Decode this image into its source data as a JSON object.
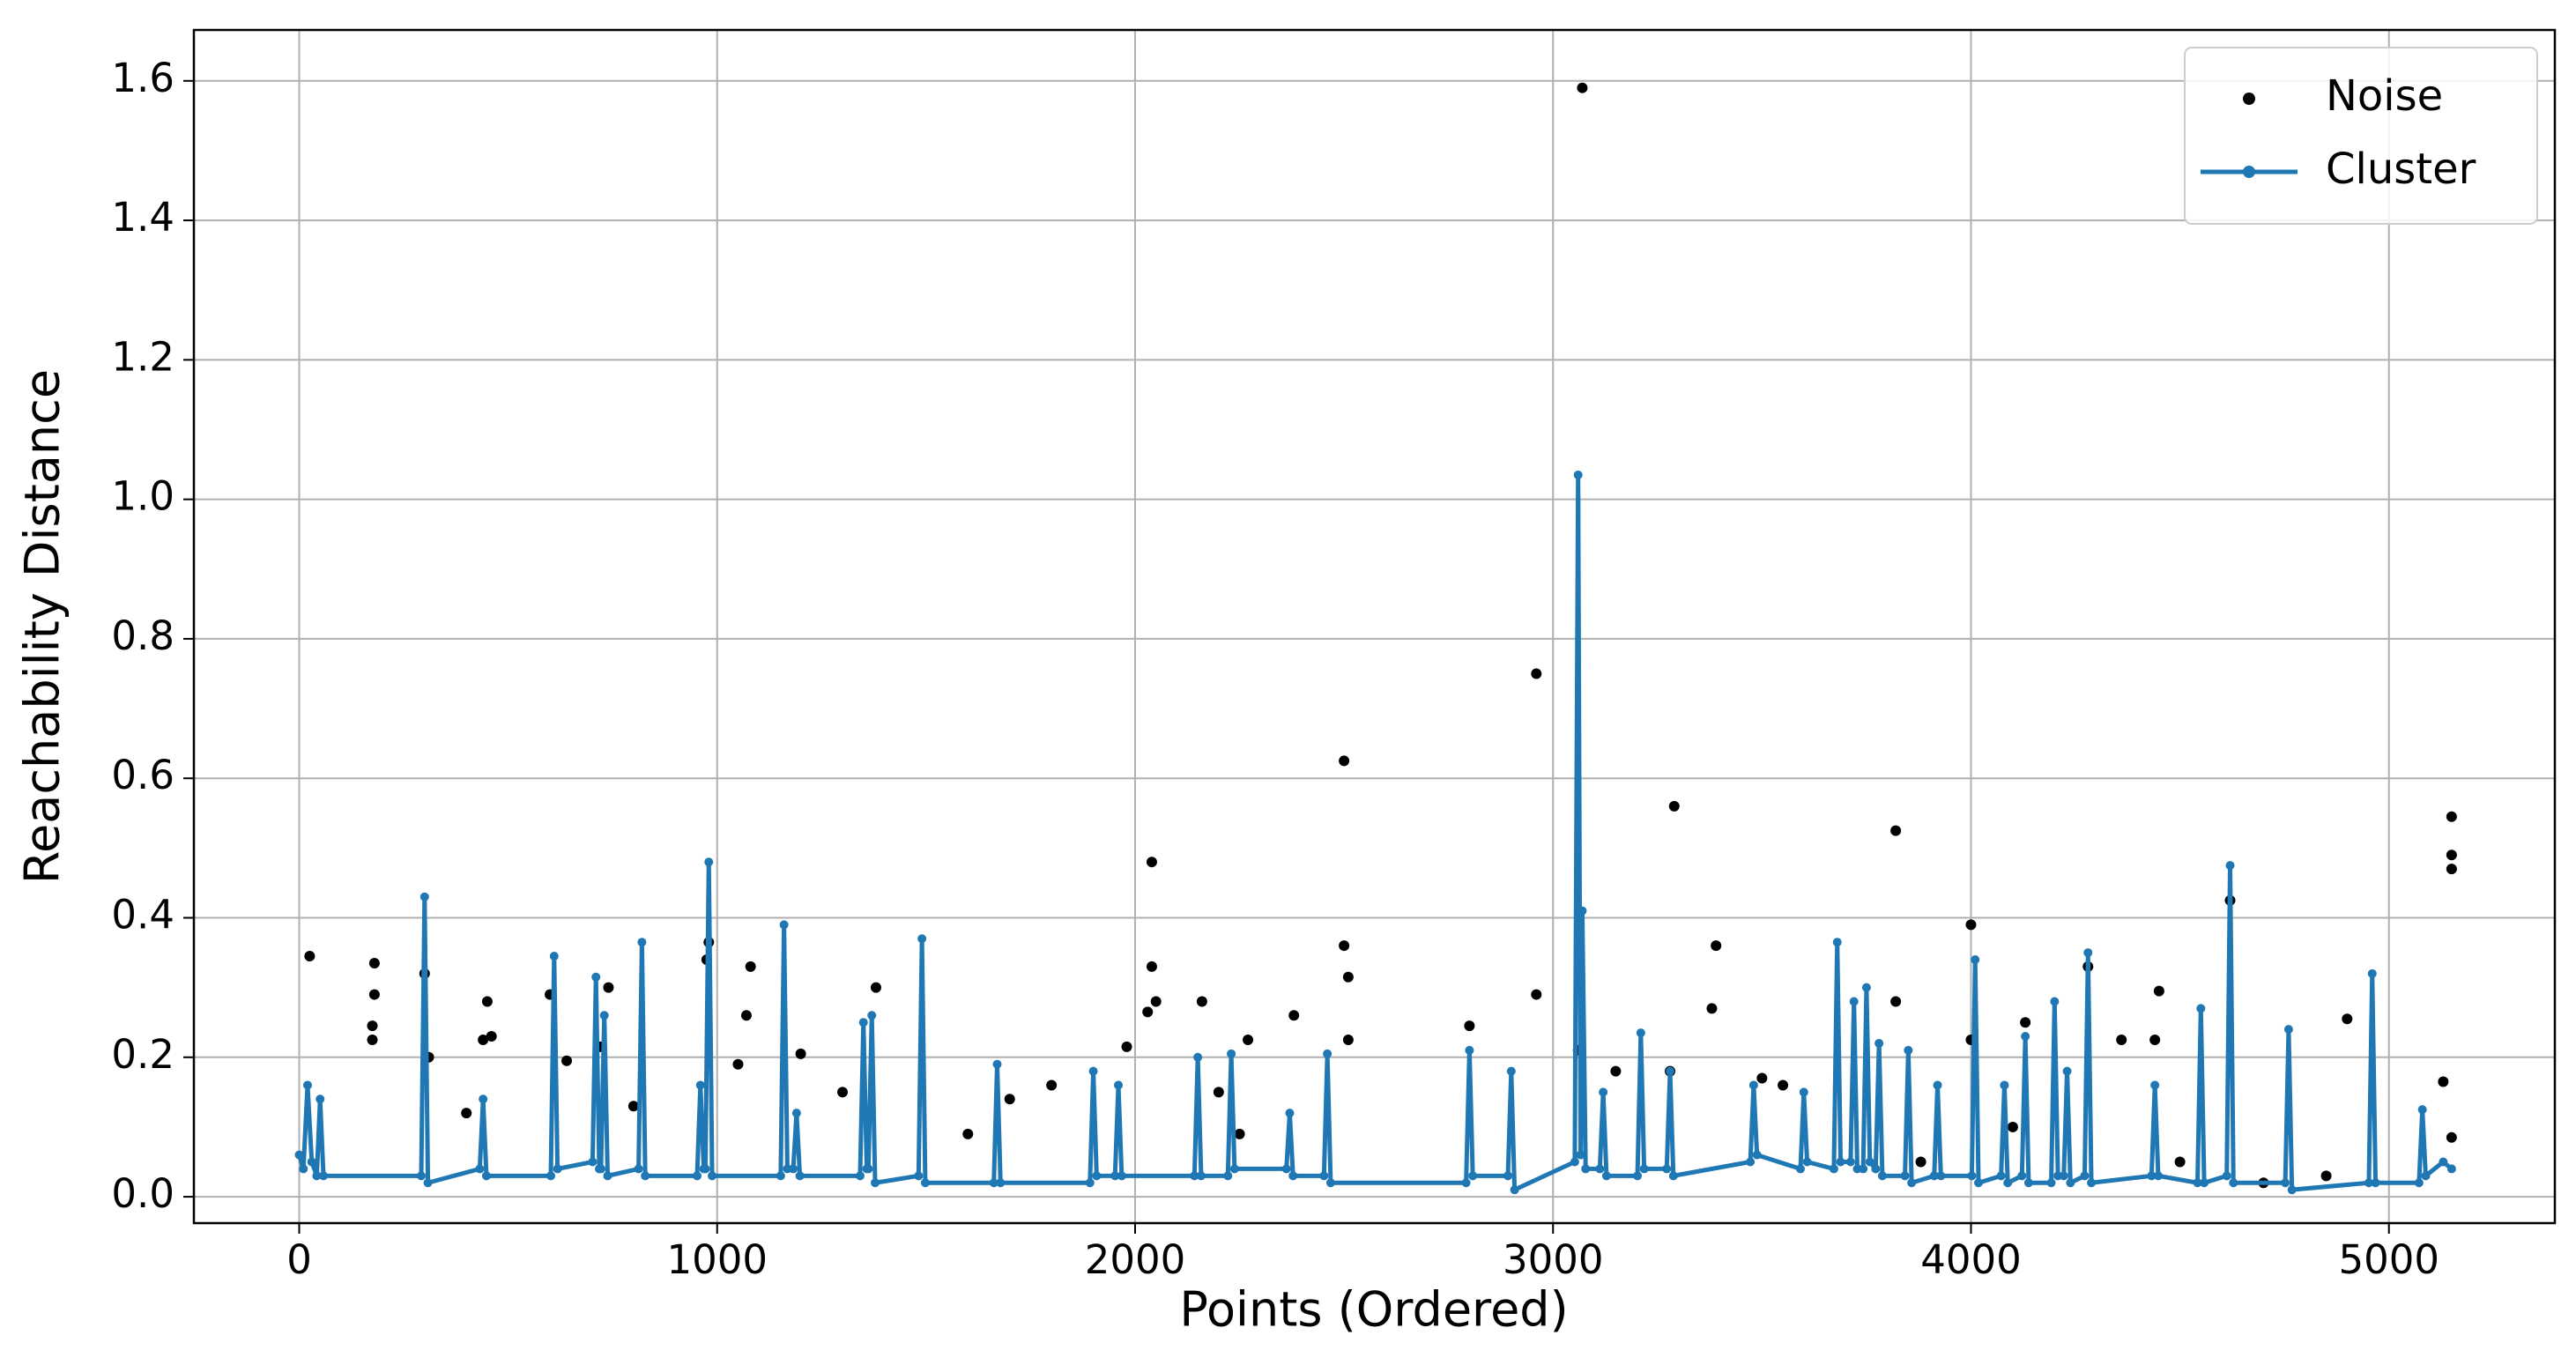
{
  "chart_data": {
    "type": "line",
    "x_label": "Points (Ordered)",
    "y_label": "Reachability Distance",
    "xlim": [
      -252,
      5397
    ],
    "ylim": [
      -0.0378,
      1.673
    ],
    "xticks": [
      0,
      1000,
      2000,
      3000,
      4000,
      5000
    ],
    "yticks": [
      {
        "value": 0,
        "label": "0.0"
      },
      0.2,
      0.4,
      0.6,
      0.8,
      {
        "value": 1,
        "label": "1.0"
      },
      1.2,
      1.4,
      1.6
    ],
    "grid": true,
    "legend": "upper right",
    "series": [
      {
        "name": "Noise",
        "type": "scatter",
        "color": "#000000",
        "x": [
          25,
          180,
          180,
          175,
          175,
          300,
          310,
          450,
          440,
          460,
          600,
          640,
          720,
          740,
          980,
          975,
          1080,
          1070,
          1050,
          1200,
          1380,
          1980,
          2030,
          2040,
          2040,
          2050,
          2160,
          2270,
          2380,
          2500,
          2500,
          2510,
          2510,
          2800,
          2960,
          2960,
          3070,
          3060,
          3290,
          3280,
          3380,
          3390,
          3820,
          3820,
          4000,
          4000,
          4130,
          4280,
          4360,
          4440,
          4450,
          4620,
          4900,
          5150,
          5150,
          5150,
          5130,
          5150,
          400,
          800,
          1300,
          1600,
          1700,
          1800,
          2200,
          2250,
          3150,
          3500,
          3550,
          3880,
          4100,
          4500,
          4700,
          4850
        ],
        "values": [
          0.345,
          0.335,
          0.29,
          0.245,
          0.225,
          0.32,
          0.2,
          0.28,
          0.225,
          0.23,
          0.29,
          0.195,
          0.215,
          0.3,
          0.365,
          0.34,
          0.33,
          0.26,
          0.19,
          0.205,
          0.3,
          0.215,
          0.265,
          0.48,
          0.33,
          0.28,
          0.28,
          0.225,
          0.26,
          0.625,
          0.36,
          0.315,
          0.225,
          0.245,
          0.75,
          0.29,
          1.59,
          0.21,
          0.56,
          0.18,
          0.27,
          0.36,
          0.525,
          0.28,
          0.39,
          0.225,
          0.25,
          0.33,
          0.225,
          0.225,
          0.295,
          0.425,
          0.255,
          0.545,
          0.49,
          0.47,
          0.165,
          0.085,
          0.12,
          0.13,
          0.15,
          0.09,
          0.14,
          0.16,
          0.15,
          0.09,
          0.18,
          0.17,
          0.16,
          0.05,
          0.1,
          0.05,
          0.02,
          0.03
        ]
      },
      {
        "name": "Cluster",
        "type": "line",
        "color": "#1f77b4",
        "x": [
          0,
          10,
          20,
          30,
          42,
          50,
          58,
          292,
          300,
          308,
          432,
          440,
          448,
          602,
          610,
          618,
          702,
          710,
          718,
          722,
          730,
          738,
          812,
          820,
          828,
          952,
          960,
          968,
          972,
          980,
          988,
          1152,
          1160,
          1168,
          1182,
          1190,
          1198,
          1342,
          1350,
          1358,
          1362,
          1370,
          1378,
          1482,
          1490,
          1498,
          1662,
          1670,
          1678,
          1892,
          1900,
          1908,
          1952,
          1960,
          1968,
          2142,
          2150,
          2158,
          2222,
          2230,
          2238,
          2362,
          2370,
          2378,
          2452,
          2460,
          2468,
          2792,
          2800,
          2808,
          2892,
          2900,
          2908,
          3052,
          3060,
          3066,
          3070,
          3078,
          3112,
          3120,
          3128,
          3202,
          3210,
          3218,
          3272,
          3280,
          3288,
          3472,
          3480,
          3488,
          3592,
          3600,
          3608,
          3672,
          3680,
          3688,
          3712,
          3720,
          3728,
          3742,
          3750,
          3758,
          3772,
          3780,
          3788,
          3842,
          3850,
          3858,
          3912,
          3920,
          3928,
          4002,
          4010,
          4018,
          4072,
          4080,
          4088,
          4122,
          4130,
          4138,
          4192,
          4200,
          4208,
          4222,
          4230,
          4238,
          4272,
          4280,
          4288,
          4432,
          4440,
          4448,
          4542,
          4550,
          4558,
          4612,
          4620,
          4628,
          4752,
          4760,
          4768,
          4952,
          4960,
          4968,
          5072,
          5080,
          5088,
          5130,
          5150
        ],
        "values": [
          0.06,
          0.04,
          0.16,
          0.05,
          0.03,
          0.14,
          0.03,
          0.03,
          0.43,
          0.02,
          0.04,
          0.14,
          0.03,
          0.03,
          0.345,
          0.04,
          0.05,
          0.315,
          0.04,
          0.04,
          0.26,
          0.03,
          0.04,
          0.365,
          0.03,
          0.03,
          0.16,
          0.04,
          0.04,
          0.48,
          0.03,
          0.03,
          0.39,
          0.04,
          0.04,
          0.12,
          0.03,
          0.03,
          0.25,
          0.04,
          0.04,
          0.26,
          0.02,
          0.03,
          0.37,
          0.02,
          0.02,
          0.19,
          0.02,
          0.02,
          0.18,
          0.03,
          0.03,
          0.16,
          0.03,
          0.03,
          0.2,
          0.03,
          0.03,
          0.205,
          0.04,
          0.04,
          0.12,
          0.03,
          0.03,
          0.205,
          0.02,
          0.02,
          0.21,
          0.03,
          0.03,
          0.18,
          0.01,
          0.05,
          1.035,
          0.06,
          0.41,
          0.04,
          0.04,
          0.15,
          0.03,
          0.03,
          0.235,
          0.04,
          0.04,
          0.18,
          0.03,
          0.05,
          0.16,
          0.06,
          0.04,
          0.15,
          0.05,
          0.04,
          0.365,
          0.05,
          0.05,
          0.28,
          0.04,
          0.04,
          0.3,
          0.05,
          0.04,
          0.22,
          0.03,
          0.03,
          0.21,
          0.02,
          0.03,
          0.16,
          0.03,
          0.03,
          0.34,
          0.02,
          0.03,
          0.16,
          0.02,
          0.03,
          0.23,
          0.02,
          0.02,
          0.28,
          0.03,
          0.03,
          0.18,
          0.02,
          0.03,
          0.35,
          0.02,
          0.03,
          0.16,
          0.03,
          0.02,
          0.27,
          0.02,
          0.03,
          0.475,
          0.02,
          0.02,
          0.24,
          0.01,
          0.02,
          0.32,
          0.02,
          0.02,
          0.125,
          0.03,
          0.05,
          0.04
        ]
      }
    ]
  }
}
